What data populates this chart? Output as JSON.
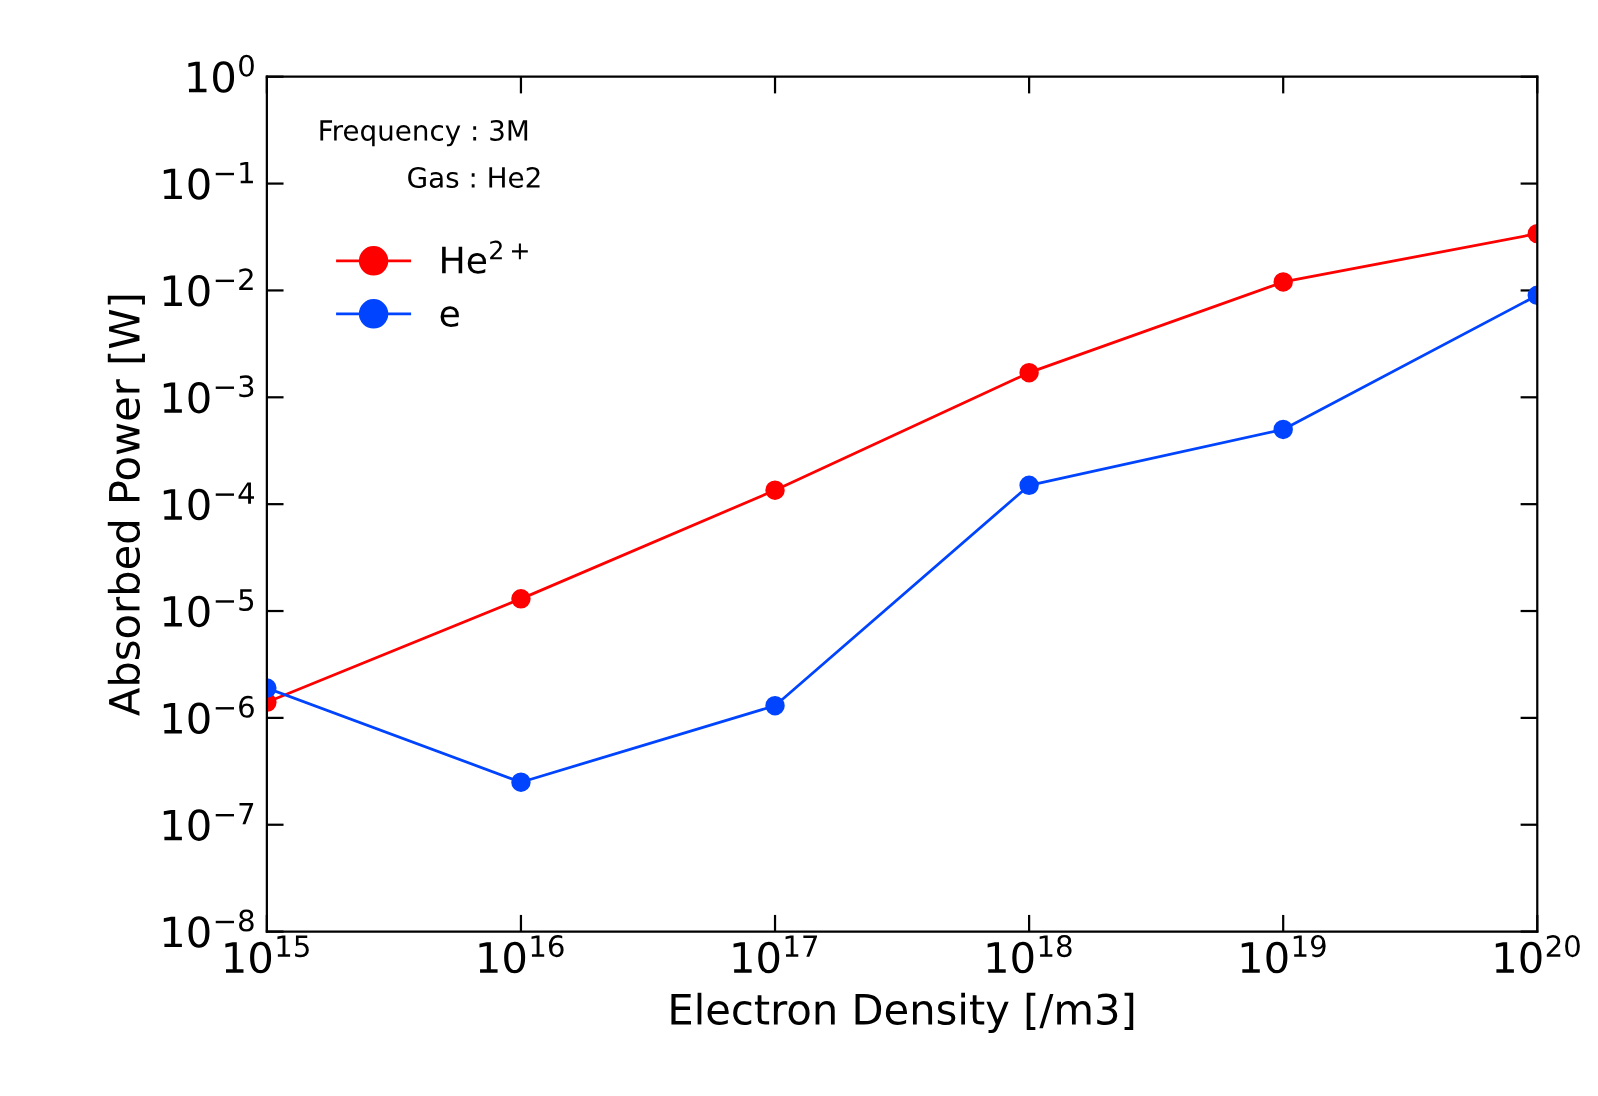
{
  "chart_data": {
    "type": "line",
    "xlabel": "Electron Density [/m3]",
    "ylabel": "Absorbed Power [W]",
    "x": [
      1000000000000000.0,
      1e+16,
      1e+17,
      1e+18,
      1e+19,
      1e+20
    ],
    "series": [
      {
        "name": "He$^{2+}$",
        "color": "#ff0000",
        "values": [
          1.4e-06,
          1.3e-05,
          0.000135,
          0.0017,
          0.012,
          0.034
        ]
      },
      {
        "name": "e",
        "color": "#0044ff",
        "values": [
          1.9e-06,
          2.5e-07,
          1.3e-06,
          0.00015,
          0.0005,
          0.009
        ]
      }
    ],
    "log": "xy",
    "xlim": [
      1000000000000000.0,
      1e+20
    ],
    "ylim": [
      1e-08,
      1
    ],
    "xticks": [
      {
        "value": 1000000000000000.0,
        "label": "10$^{15}$"
      },
      {
        "value": 1e+16,
        "label": "10$^{16}$"
      },
      {
        "value": 1e+17,
        "label": "10$^{17}$"
      },
      {
        "value": 1e+18,
        "label": "10$^{18}$"
      },
      {
        "value": 1e+19,
        "label": "10$^{19}$"
      },
      {
        "value": 1e+20,
        "label": "10$^{20}$"
      }
    ],
    "yticks": [
      {
        "value": 1e-08,
        "label": "10$^{−8}$"
      },
      {
        "value": 1e-07,
        "label": "10$^{−7}$"
      },
      {
        "value": 1e-06,
        "label": "10$^{−6}$"
      },
      {
        "value": 1e-05,
        "label": "10$^{−5}$"
      },
      {
        "value": 0.0001,
        "label": "10$^{−4}$"
      },
      {
        "value": 0.001,
        "label": "10$^{−3}$"
      },
      {
        "value": 0.01,
        "label": "10$^{−2}$"
      },
      {
        "value": 0.1,
        "label": "10$^{−1}$"
      },
      {
        "value": 1,
        "label": "10$^{0}$"
      }
    ],
    "annotations": [
      "Frequency : 3M",
      "Gas : He2"
    ],
    "legend": "top left",
    "marker": "circle",
    "line_style": "solid",
    "grid": false
  }
}
